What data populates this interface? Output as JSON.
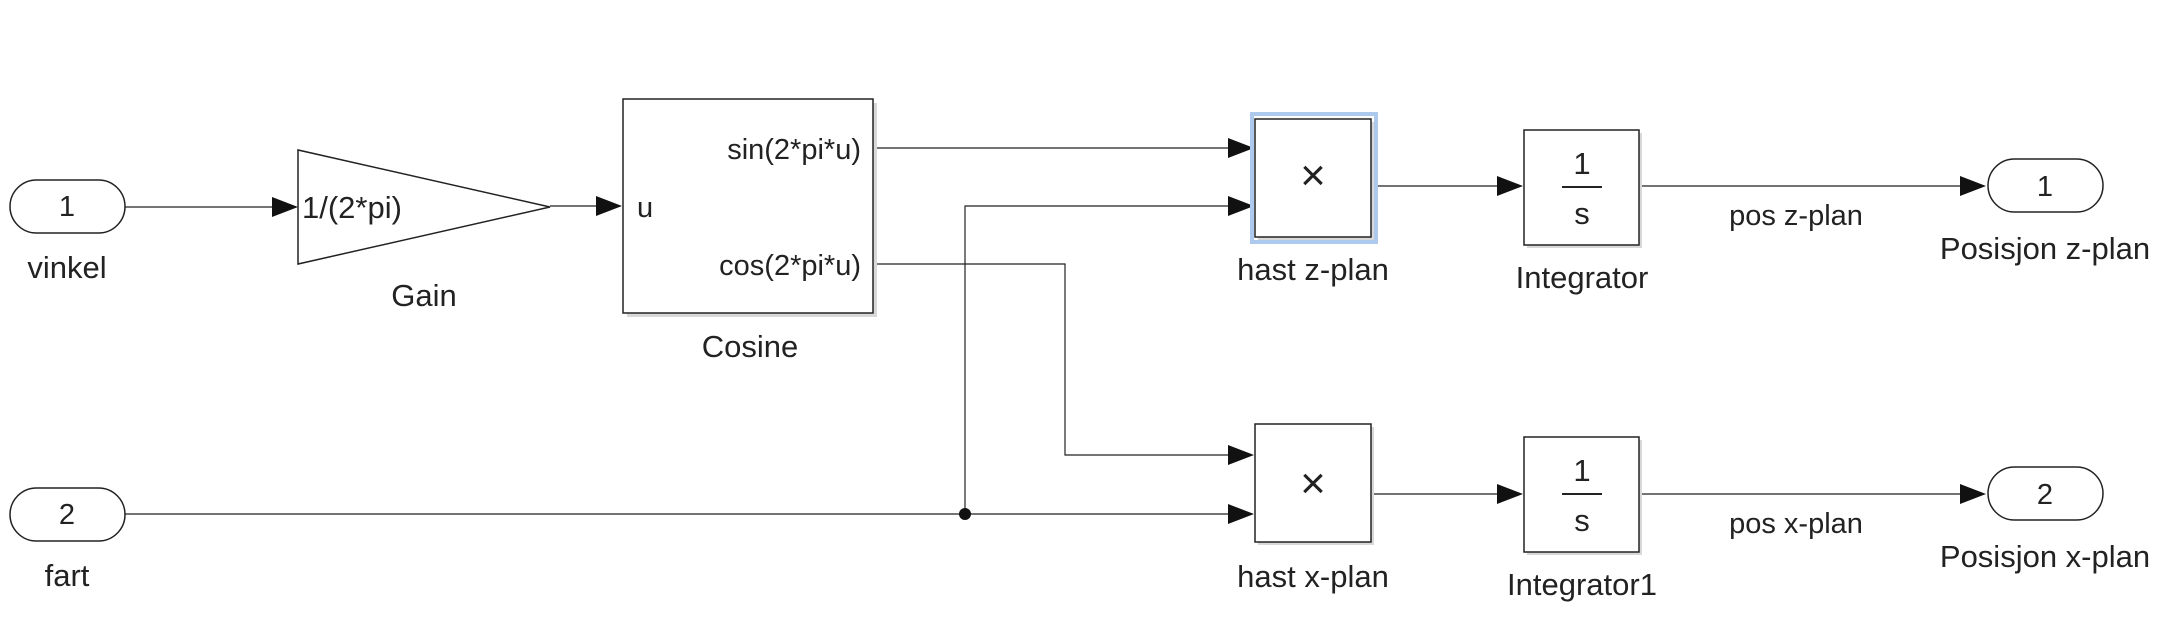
{
  "inports": [
    {
      "number": "1",
      "name": "vinkel"
    },
    {
      "number": "2",
      "name": "fart"
    }
  ],
  "gain": {
    "expression": "1/(2*pi)",
    "name": "Gain"
  },
  "cosine": {
    "input_port": "u",
    "out_sin": "sin(2*pi*u)",
    "out_cos": "cos(2*pi*u)",
    "name": "Cosine"
  },
  "products": [
    {
      "symbol": "×",
      "name": "hast z-plan"
    },
    {
      "symbol": "×",
      "name": "hast x-plan"
    }
  ],
  "integrators": [
    {
      "numerator": "1",
      "denominator": "s",
      "name": "Integrator"
    },
    {
      "numerator": "1",
      "denominator": "s",
      "name": "Integrator1"
    }
  ],
  "signals": [
    "pos z-plan",
    "pos x-plan"
  ],
  "outports": [
    {
      "number": "1",
      "name": "Posisjon z-plan"
    },
    {
      "number": "2",
      "name": "Posisjon x-plan"
    }
  ],
  "colors": {
    "line": "#222222",
    "selection": "#aec9ee"
  }
}
